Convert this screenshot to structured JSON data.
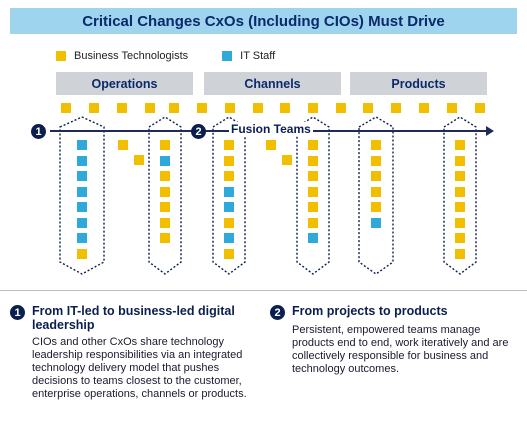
{
  "title": "Critical Changes CxOs (Including CIOs) Must Drive",
  "legend": [
    {
      "label": "Business Technologists",
      "color": "#f2bf00"
    },
    {
      "label": "IT Staff",
      "color": "#2fa9d9"
    }
  ],
  "categories": [
    "Operations",
    "Channels",
    "Products"
  ],
  "timeline": {
    "marker_1": "1",
    "marker_2": "2",
    "label": "Fusion Teams"
  },
  "colors": {
    "business_technologists": "#f2bf00",
    "it_staff": "#2fa9d9",
    "navy": "#0b1f4f"
  },
  "groups": [
    {
      "name": "Operations",
      "team_a": [
        "it",
        "it",
        "it",
        "it",
        "it",
        "it",
        "it",
        "bt"
      ],
      "loose": [
        "bt",
        "bt"
      ],
      "team_b": [
        "bt",
        "it",
        "bt",
        "bt",
        "bt",
        "bt",
        "bt"
      ]
    },
    {
      "name": "Channels",
      "team_a": [
        "bt",
        "bt",
        "bt",
        "it",
        "it",
        "bt",
        "it",
        "bt"
      ],
      "loose": [
        "bt",
        "bt"
      ],
      "team_b": [
        "bt",
        "bt",
        "bt",
        "bt",
        "bt",
        "bt",
        "it"
      ]
    },
    {
      "name": "Products",
      "team_a": [
        "bt",
        "bt",
        "bt",
        "bt",
        "bt",
        "it"
      ],
      "loose": [],
      "team_b": [
        "bt",
        "bt",
        "bt",
        "bt",
        "bt",
        "bt",
        "bt",
        "bt"
      ]
    }
  ],
  "points": [
    {
      "number": "1",
      "title": "From IT-led to business-led digital leadership",
      "body": "CIOs and other CxOs share technology leadership responsibilities via an integrated technology delivery model that pushes decisions to teams closest to the customer, enterprise operations, channels or products."
    },
    {
      "number": "2",
      "title": "From projects to products",
      "body": "Persistent, empowered teams manage products end to end, work iteratively and are collectively responsible for business and technology outcomes."
    }
  ]
}
